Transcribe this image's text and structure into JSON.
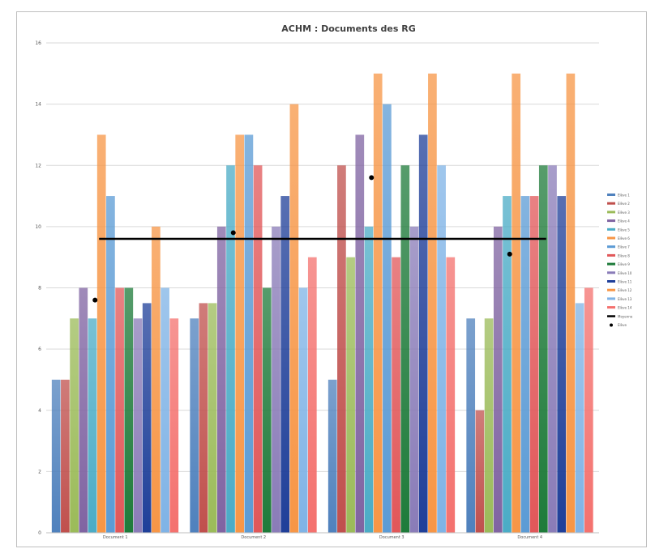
{
  "chart_data": {
    "type": "bar",
    "title": "ACHM : Documents des RG",
    "categories": [
      "Document 1",
      "Document 2",
      "Document 3",
      "Document 4"
    ],
    "ylim": [
      0,
      16
    ],
    "y_ticks": [
      0,
      2,
      4,
      6,
      8,
      10,
      12,
      14,
      16
    ],
    "grid": true,
    "legend_position": "right",
    "series": [
      {
        "name": "Elève 1",
        "color": "#4f81bd",
        "values": [
          5,
          7,
          5,
          7
        ]
      },
      {
        "name": "Elève 2",
        "color": "#c0504d",
        "values": [
          5,
          7.5,
          12,
          4
        ]
      },
      {
        "name": "Elève 3",
        "color": "#9bbb59",
        "values": [
          7,
          7.5,
          9,
          7
        ]
      },
      {
        "name": "Elève 4",
        "color": "#8064a2",
        "values": [
          8,
          10,
          13,
          10
        ]
      },
      {
        "name": "Elève 5",
        "color": "#4bacc6",
        "values": [
          7,
          12,
          10,
          11
        ]
      },
      {
        "name": "Elève 6",
        "color": "#f79646",
        "values": [
          13,
          13,
          15,
          15
        ]
      },
      {
        "name": "Elève 7",
        "color": "#5b9bd5",
        "values": [
          11,
          13,
          14,
          11
        ]
      },
      {
        "name": "Elève 8",
        "color": "#e15759",
        "values": [
          8,
          12,
          9,
          11
        ]
      },
      {
        "name": "Elève 9",
        "color": "#1e7b3a",
        "values": [
          8,
          8,
          12,
          12
        ]
      },
      {
        "name": "Elève 10",
        "color": "#8a7cb8",
        "values": [
          7,
          10,
          10,
          12
        ]
      },
      {
        "name": "Elève 11",
        "color": "#1f3f99",
        "values": [
          7.5,
          11,
          13,
          11
        ]
      },
      {
        "name": "Elève 12",
        "color": "#f79646",
        "values": [
          10,
          14,
          15,
          15
        ]
      },
      {
        "name": "Elève 13",
        "color": "#7fb3e6",
        "values": [
          8,
          8,
          12,
          7.5
        ]
      },
      {
        "name": "Elève 14",
        "color": "#f4716e",
        "values": [
          7,
          9,
          9,
          8
        ]
      }
    ],
    "line_series": {
      "name": "Moyenne",
      "color": "#000000",
      "value": 9.6
    },
    "point_series": {
      "name": "Elève",
      "color": "#000000",
      "values": [
        7.6,
        9.8,
        11.6,
        9.1
      ]
    }
  }
}
